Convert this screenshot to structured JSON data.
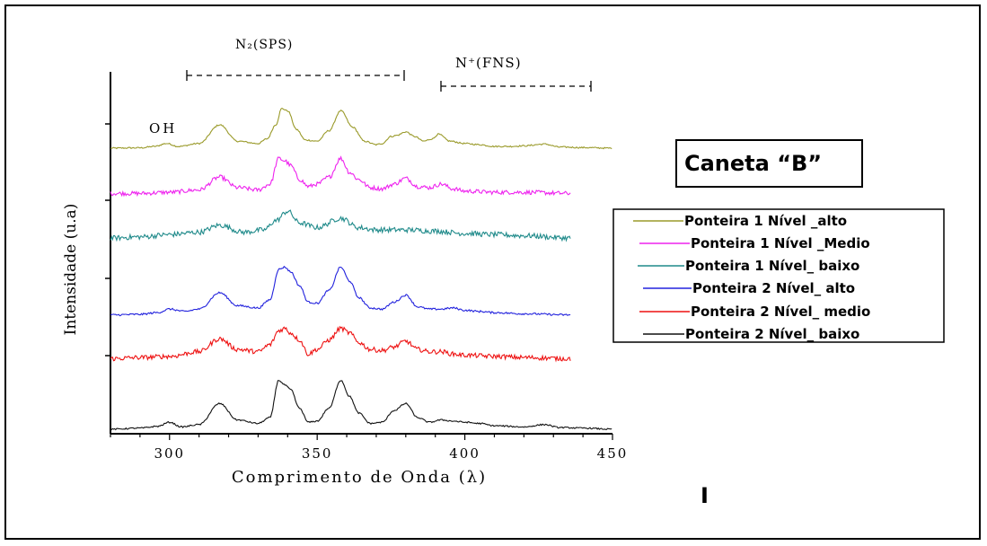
{
  "chart_data": {
    "type": "line",
    "title": "Caneta “B”",
    "xlabel": "Comprimento de Onda (λ)",
    "ylabel": "Intensidade (u.a)",
    "xlim": [
      280,
      450
    ],
    "xticks": [
      "300",
      "350",
      "400",
      "450"
    ],
    "annotations": {
      "oh": "OH",
      "n2_sps": "N₂(SPS)",
      "n_fns": "N⁺(FNS)"
    },
    "legend_position": "right",
    "series": [
      {
        "name": "Ponteira 1 Nível _alto",
        "color": "#9a9a2a",
        "end": 450,
        "noise": 0.6,
        "x": [
          280,
          290,
          295,
          299,
          303,
          310,
          317,
          323,
          330,
          333,
          336,
          338,
          340,
          343,
          346,
          350,
          354,
          358,
          362,
          366,
          370,
          372,
          375,
          377,
          380,
          383,
          386,
          389,
          391,
          395,
          400,
          405,
          410,
          415,
          420,
          427,
          432,
          440,
          450
        ],
        "y": [
          0,
          0.3,
          1.5,
          4,
          1.5,
          4,
          20,
          6,
          4,
          8,
          20,
          34,
          32,
          16,
          7,
          6,
          15,
          32,
          18,
          6,
          3,
          4,
          10,
          11,
          14,
          10,
          6,
          8,
          12,
          6,
          4,
          3,
          1.5,
          1.5,
          2,
          3.5,
          1,
          0.5,
          0
        ]
      },
      {
        "name": "Ponteira 1 Nível _Medio",
        "color": "#ee22ee",
        "end": 436,
        "noise": 1.8,
        "x": [
          280,
          290,
          300,
          310,
          317,
          323,
          330,
          334,
          337,
          339,
          341,
          344,
          347,
          350,
          354,
          358,
          361,
          364,
          368,
          372,
          376,
          380,
          384,
          388,
          392,
          396,
          400,
          410,
          420,
          436
        ],
        "y": [
          2,
          2,
          3,
          5,
          16,
          7,
          5,
          10,
          32,
          30,
          26,
          14,
          8,
          10,
          16,
          32,
          20,
          14,
          7,
          6,
          10,
          15,
          8,
          7,
          10,
          6,
          4,
          3,
          3,
          2
        ]
      },
      {
        "name": "Ponteira 1 Nível_ baixo",
        "color": "#1f8a8a",
        "end": 436,
        "noise": 2.2,
        "x": [
          280,
          290,
          300,
          310,
          317,
          325,
          332,
          336,
          340,
          344,
          350,
          358,
          364,
          370,
          380,
          390,
          400,
          410,
          420,
          436
        ],
        "y": [
          3,
          4,
          6,
          8,
          14,
          8,
          10,
          18,
          26,
          16,
          12,
          20,
          12,
          10,
          10,
          9,
          7,
          6,
          5,
          3
        ]
      },
      {
        "name": "Ponteira 2 Nível_ alto",
        "color": "#2222dd",
        "end": 436,
        "noise": 0.8,
        "x": [
          280,
          290,
          296,
          300,
          305,
          310,
          317,
          323,
          330,
          334,
          337,
          339,
          341,
          344,
          347,
          350,
          354,
          358,
          361,
          364,
          368,
          372,
          376,
          380,
          384,
          388,
          392,
          396,
          400,
          405,
          410,
          420,
          436
        ],
        "y": [
          1,
          1.5,
          3,
          6,
          4,
          6,
          20,
          9,
          7,
          14,
          40,
          42,
          38,
          26,
          12,
          11,
          22,
          42,
          30,
          16,
          7,
          6,
          12,
          18,
          8,
          6,
          6,
          7,
          5,
          4,
          3,
          2,
          1
        ]
      },
      {
        "name": "Ponteira 2 Nível_ medio",
        "color": "#ee1111",
        "end": 436,
        "noise": 2.0,
        "x": [
          280,
          290,
          300,
          310,
          317,
          323,
          330,
          334,
          337,
          339,
          341,
          344,
          347,
          350,
          354,
          358,
          361,
          364,
          368,
          372,
          376,
          380,
          384,
          388,
          392,
          396,
          400,
          410,
          420,
          436
        ],
        "y": [
          2,
          3,
          4,
          8,
          19,
          10,
          8,
          14,
          26,
          28,
          24,
          18,
          6,
          10,
          18,
          28,
          24,
          16,
          10,
          9,
          12,
          17,
          10,
          8,
          8,
          6,
          5,
          4,
          3,
          2
        ]
      },
      {
        "name": "Ponteira 2 Nível_ baixo",
        "color": "#111111",
        "end": 450,
        "noise": 0.6,
        "x": [
          280,
          290,
          296,
          300,
          304,
          310,
          317,
          323,
          330,
          334,
          337,
          339,
          341,
          344,
          347,
          350,
          354,
          358,
          361,
          364,
          368,
          372,
          376,
          380,
          384,
          388,
          392,
          396,
          400,
          405,
          410,
          420,
          427,
          432,
          440,
          450
        ],
        "y": [
          0,
          1,
          2.5,
          6,
          2,
          4,
          22,
          8,
          5,
          10,
          42,
          38,
          34,
          18,
          6,
          7,
          18,
          42,
          28,
          14,
          5,
          6,
          16,
          22,
          10,
          6,
          8,
          7,
          6,
          5,
          3,
          2,
          4,
          1.5,
          1,
          0
        ]
      }
    ]
  },
  "page_footer": {
    "mark": "I"
  }
}
